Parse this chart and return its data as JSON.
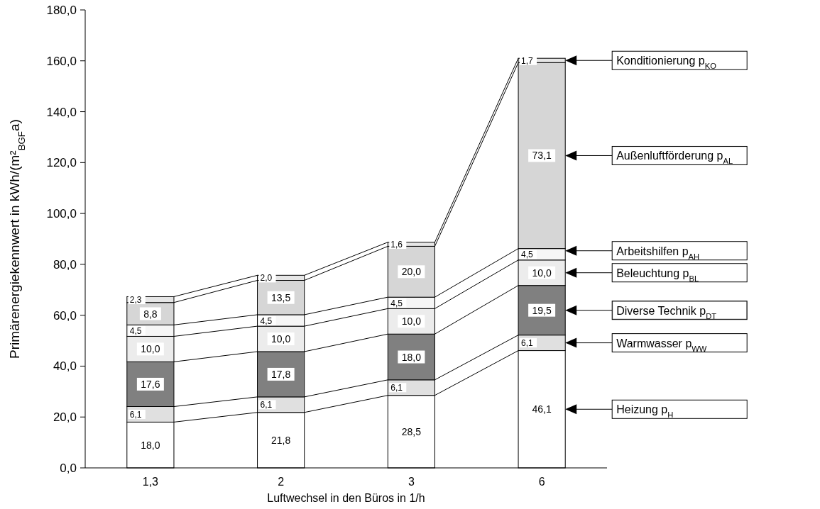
{
  "chart_data": {
    "type": "bar",
    "stacked": true,
    "xlabel": "Luftwechsel in den Büros in 1/h",
    "ylabel": "Primärenergiekennwert in kWh/(m²$_{BGF}$a)",
    "categories": [
      "1,3",
      "2",
      "3",
      "6"
    ],
    "ylim": [
      0,
      180
    ],
    "yticks": [
      {
        "value": 0,
        "label": "0,0"
      },
      {
        "value": 20,
        "label": "20,0"
      },
      {
        "value": 40,
        "label": "40,0"
      },
      {
        "value": 60,
        "label": "60,0"
      },
      {
        "value": 80,
        "label": "80,0"
      },
      {
        "value": 100,
        "label": "100,0"
      },
      {
        "value": 120,
        "label": "120,0"
      },
      {
        "value": 140,
        "label": "140,0"
      },
      {
        "value": 160,
        "label": "160,0"
      },
      {
        "value": 180,
        "label": "180,0"
      }
    ],
    "legend": "right",
    "series": [
      {
        "name": "Heizung p$_{H}$",
        "color": "#ffffff",
        "values": [
          18.0,
          21.8,
          28.5,
          46.1
        ],
        "value_labels": [
          "18,0",
          "21,8",
          "28,5",
          "46,1"
        ]
      },
      {
        "name": "Warmwasser p$_{WW}$",
        "color": "#e0e0e0",
        "values": [
          6.1,
          6.1,
          6.1,
          6.1
        ],
        "value_labels": [
          "6,1",
          "6,1",
          "6,1",
          "6,1"
        ]
      },
      {
        "name": "Diverse Technik p$_{DT}$",
        "color": "#808080",
        "values": [
          17.6,
          17.8,
          18.0,
          19.5
        ],
        "value_labels": [
          "17,6",
          "17,8",
          "18,0",
          "19,5"
        ]
      },
      {
        "name": "Beleuchtung p$_{BL}$",
        "color": "#ececec",
        "values": [
          10.0,
          10.0,
          10.0,
          10.0
        ],
        "value_labels": [
          "10,0",
          "10,0",
          "10,0",
          "10,0"
        ]
      },
      {
        "name": "Arbeitshilfen p$_{AH}$",
        "color": "#f6f6f6",
        "values": [
          4.5,
          4.5,
          4.5,
          4.5
        ],
        "value_labels": [
          "4,5",
          "4,5",
          "4,5",
          "4,5"
        ]
      },
      {
        "name": "Außenluftförderung p$_{AL}$",
        "color": "#d6d6d6",
        "values": [
          8.8,
          13.5,
          20.0,
          73.1
        ],
        "value_labels": [
          "8,8",
          "13,5",
          "20,0",
          "73,1"
        ]
      },
      {
        "name": "Konditionierung p$_{KO}$",
        "color": "#e6e6e6",
        "values": [
          2.3,
          2.0,
          1.6,
          1.7
        ],
        "value_labels": [
          "2,3",
          "2,0",
          "1,6",
          "1,7"
        ]
      }
    ]
  }
}
